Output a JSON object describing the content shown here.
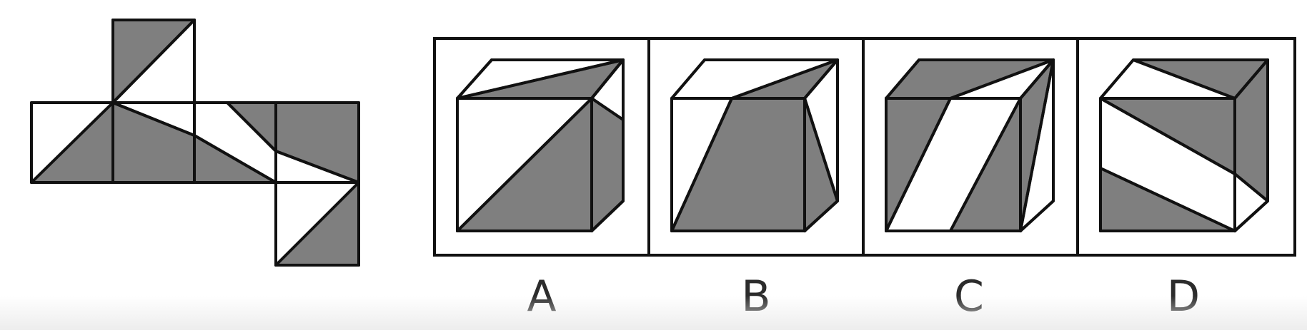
{
  "puzzle": {
    "net_description": "cube-net-diagram",
    "options": [
      {
        "id": "A",
        "label": "A"
      },
      {
        "id": "B",
        "label": "B"
      },
      {
        "id": "C",
        "label": "C"
      },
      {
        "id": "D",
        "label": "D"
      }
    ],
    "colors": {
      "shade": "#7f7f7f",
      "line": "#111111",
      "background": "#ffffff"
    }
  }
}
